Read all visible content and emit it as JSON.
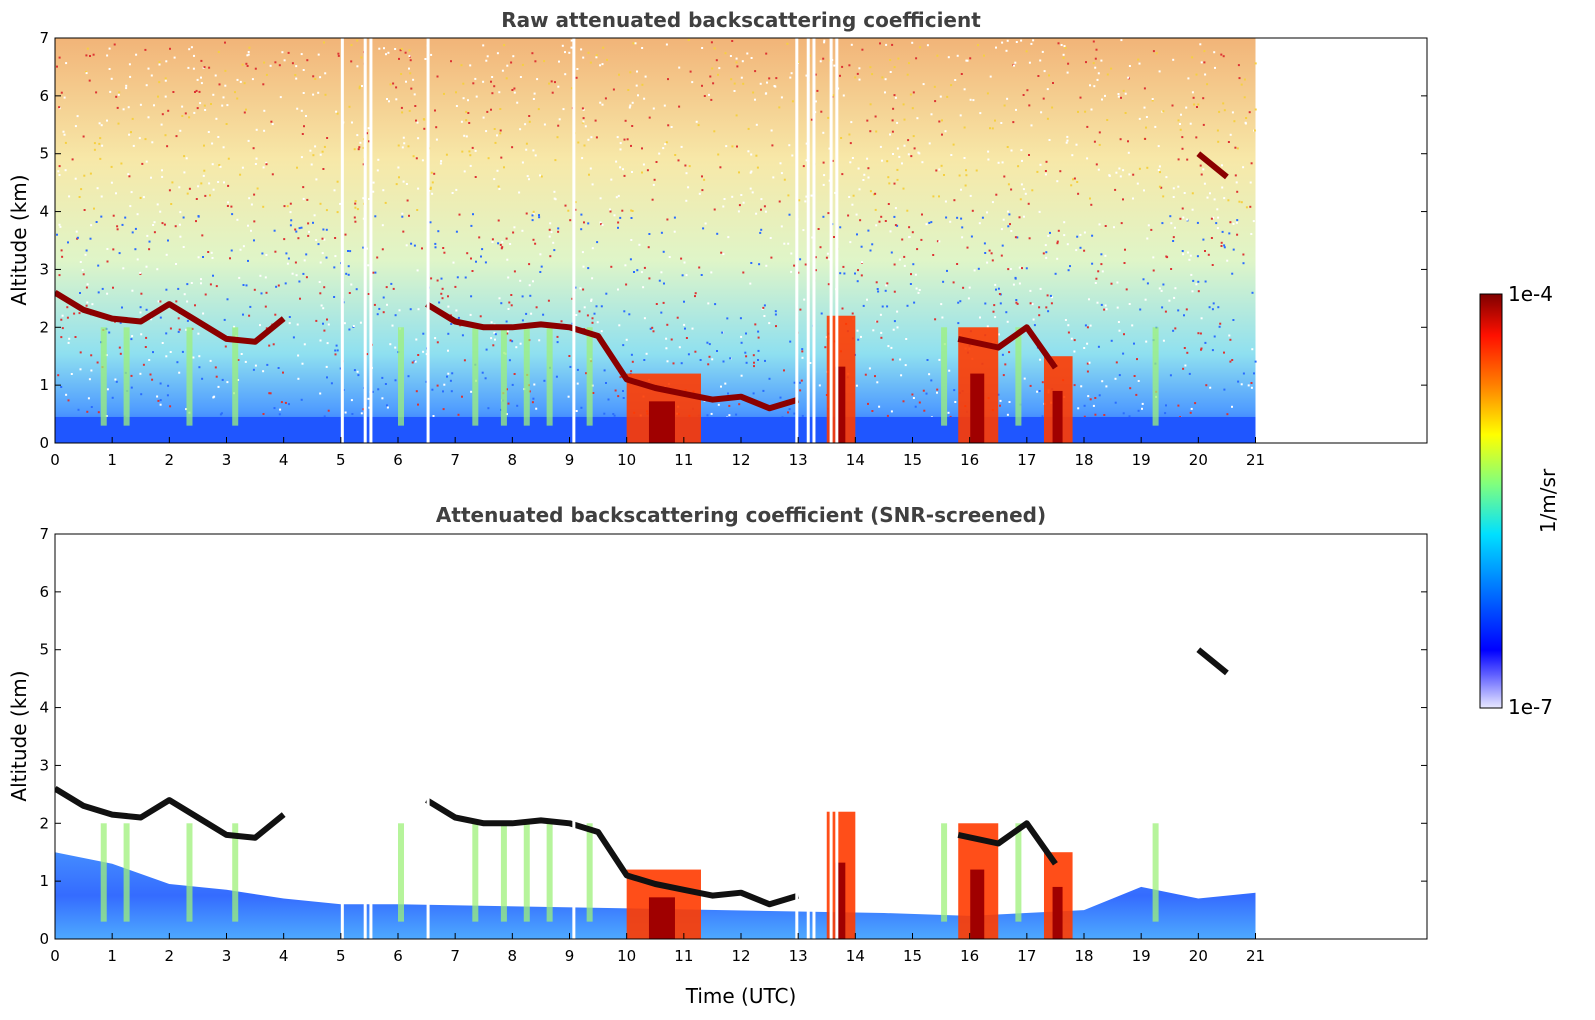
{
  "chart_data": [
    {
      "type": "heatmap",
      "title": "Raw attenuated backscattering coefficient",
      "xlabel": "",
      "ylabel": "Altitude (km)",
      "xlim": [
        0,
        24
      ],
      "ylim": [
        0,
        7
      ],
      "xticks": [
        "0",
        "1",
        "2",
        "3",
        "4",
        "5",
        "6",
        "7",
        "8",
        "9",
        "10",
        "11",
        "12",
        "13",
        "14",
        "15",
        "16",
        "17",
        "18",
        "19",
        "20",
        "21"
      ],
      "yticks": [
        "0",
        "1",
        "2",
        "3",
        "4",
        "5",
        "6",
        "7"
      ],
      "data_time_range": [
        0,
        21
      ],
      "missing_profiles": [
        5.0,
        5.4,
        5.5,
        6.5,
        9.05,
        12.95,
        13.15,
        13.25,
        13.55,
        13.65
      ],
      "cloud_layer": [
        {
          "time": 0.0,
          "alt": 2.6
        },
        {
          "time": 0.5,
          "alt": 2.3
        },
        {
          "time": 1.0,
          "alt": 2.15
        },
        {
          "time": 1.5,
          "alt": 2.1
        },
        {
          "time": 2.0,
          "alt": 2.4
        },
        {
          "time": 2.5,
          "alt": 2.1
        },
        {
          "time": 3.0,
          "alt": 1.8
        },
        {
          "time": 3.5,
          "alt": 1.75
        },
        {
          "time": 4.0,
          "alt": 2.15
        },
        {
          "time": 6.5,
          "alt": 2.4
        },
        {
          "time": 7.0,
          "alt": 2.1
        },
        {
          "time": 7.5,
          "alt": 2.0
        },
        {
          "time": 8.0,
          "alt": 2.0
        },
        {
          "time": 8.5,
          "alt": 2.05
        },
        {
          "time": 9.0,
          "alt": 2.0
        },
        {
          "time": 9.5,
          "alt": 1.85
        },
        {
          "time": 10.0,
          "alt": 1.1
        },
        {
          "time": 10.5,
          "alt": 0.95
        },
        {
          "time": 11.0,
          "alt": 0.85
        },
        {
          "time": 11.5,
          "alt": 0.75
        },
        {
          "time": 12.0,
          "alt": 0.8
        },
        {
          "time": 12.5,
          "alt": 0.6
        },
        {
          "time": 13.0,
          "alt": 0.75
        },
        {
          "time": 15.8,
          "alt": 1.8
        },
        {
          "time": 16.5,
          "alt": 1.65
        },
        {
          "time": 17.0,
          "alt": 2.0
        },
        {
          "time": 17.5,
          "alt": 1.3
        },
        {
          "time": 20.0,
          "alt": 5.0
        },
        {
          "time": 20.5,
          "alt": 4.6
        }
      ],
      "precipitation_shafts": [
        {
          "time": 10.0,
          "width": 1.3,
          "top": 1.2
        },
        {
          "time": 13.5,
          "width": 0.5,
          "top": 2.2
        },
        {
          "time": 15.8,
          "width": 0.7,
          "top": 2.0
        },
        {
          "time": 17.3,
          "width": 0.5,
          "top": 1.5
        }
      ]
    },
    {
      "type": "heatmap",
      "title": "Attenuated backscattering coefficient (SNR-screened)",
      "xlabel": "Time (UTC)",
      "ylabel": "Altitude (km)",
      "xlim": [
        0,
        24
      ],
      "ylim": [
        0,
        7
      ],
      "xticks": [
        "0",
        "1",
        "2",
        "3",
        "4",
        "5",
        "6",
        "7",
        "8",
        "9",
        "10",
        "11",
        "12",
        "13",
        "14",
        "15",
        "16",
        "17",
        "18",
        "19",
        "20",
        "21"
      ],
      "yticks": [
        "0",
        "1",
        "2",
        "3",
        "4",
        "5",
        "6",
        "7"
      ],
      "data_time_range": [
        0,
        21
      ],
      "screened_boundary_layer_top": [
        {
          "time": 0.0,
          "alt": 1.5
        },
        {
          "time": 1.0,
          "alt": 1.3
        },
        {
          "time": 2.0,
          "alt": 0.95
        },
        {
          "time": 3.0,
          "alt": 0.85
        },
        {
          "time": 4.0,
          "alt": 0.7
        },
        {
          "time": 5.0,
          "alt": 0.6
        },
        {
          "time": 6.0,
          "alt": 0.6
        },
        {
          "time": 14.5,
          "alt": 0.45
        },
        {
          "time": 16.0,
          "alt": 0.4
        },
        {
          "time": 18.0,
          "alt": 0.5
        },
        {
          "time": 19.0,
          "alt": 0.9
        },
        {
          "time": 20.0,
          "alt": 0.7
        },
        {
          "time": 21.0,
          "alt": 0.8
        }
      ]
    }
  ],
  "colorbar": {
    "max_label": "1e-4",
    "min_label": "1e-7",
    "unit_label": "1/m/sr",
    "colormap": "jet",
    "colors": [
      "#00007f",
      "#0000ff",
      "#007fff",
      "#00ffff",
      "#7fff7f",
      "#ffff00",
      "#ff7f00",
      "#ff0000",
      "#7f0000"
    ]
  }
}
